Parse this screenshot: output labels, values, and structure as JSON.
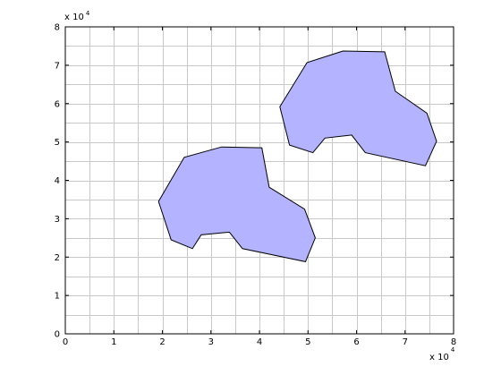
{
  "chart_data": {
    "type": "area",
    "title": "",
    "xlabel": "",
    "ylabel": "",
    "xlim": [
      0,
      8
    ],
    "ylim": [
      0,
      8
    ],
    "x_ticks": [
      0,
      1,
      2,
      3,
      4,
      5,
      6,
      7,
      8
    ],
    "y_ticks": [
      0,
      1,
      2,
      3,
      4,
      5,
      6,
      7,
      8
    ],
    "x_minor_step": 0.5,
    "y_minor_step": 0.5,
    "grid": true,
    "x_scale_label": {
      "base": "x 10",
      "exponent": "4"
    },
    "y_scale_label": {
      "base": "x 10",
      "exponent": "4"
    },
    "fill_color": "#b3b3ff",
    "edge_color": "#000000",
    "series": [
      {
        "points": [
          [
            1.92,
            3.45
          ],
          [
            2.45,
            4.6
          ],
          [
            3.22,
            4.87
          ],
          [
            4.05,
            4.85
          ],
          [
            4.2,
            3.82
          ],
          [
            4.93,
            3.25
          ],
          [
            5.15,
            2.5
          ],
          [
            4.95,
            1.88
          ],
          [
            3.65,
            2.22
          ],
          [
            3.38,
            2.65
          ],
          [
            2.8,
            2.58
          ],
          [
            2.62,
            2.22
          ],
          [
            2.18,
            2.45
          ]
        ]
      },
      {
        "points": [
          [
            4.42,
            5.92
          ],
          [
            4.98,
            7.07
          ],
          [
            5.72,
            7.37
          ],
          [
            6.58,
            7.35
          ],
          [
            6.8,
            6.32
          ],
          [
            7.45,
            5.75
          ],
          [
            7.65,
            5.02
          ],
          [
            7.42,
            4.38
          ],
          [
            6.18,
            4.72
          ],
          [
            5.9,
            5.18
          ],
          [
            5.35,
            5.1
          ],
          [
            5.1,
            4.72
          ],
          [
            4.62,
            4.92
          ]
        ]
      }
    ]
  }
}
